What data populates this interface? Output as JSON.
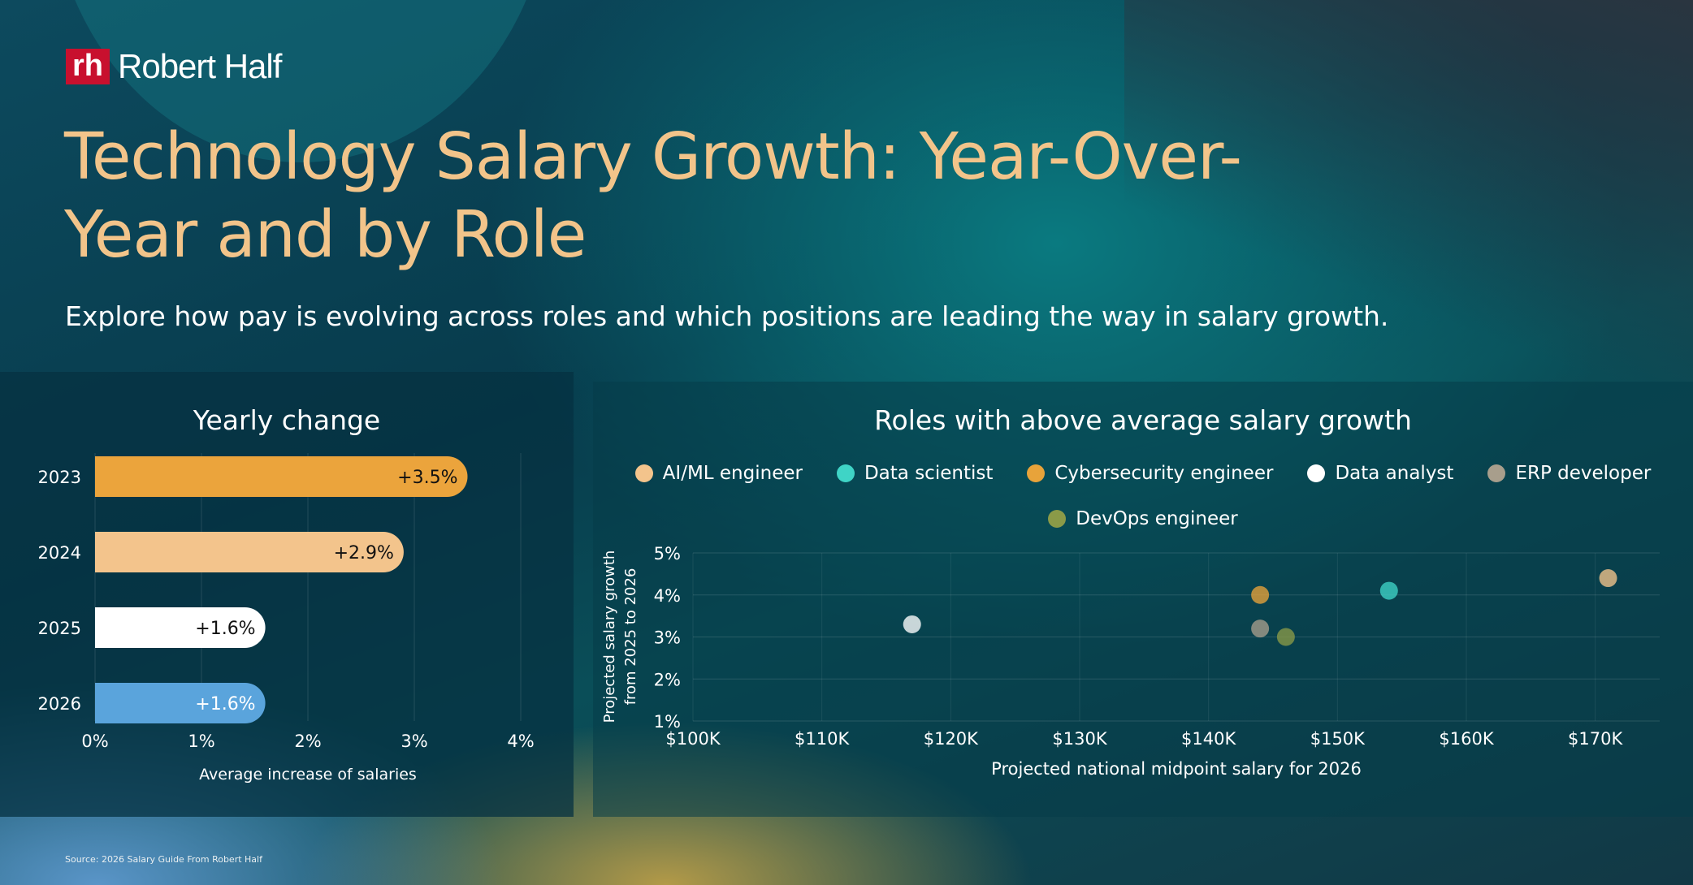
{
  "brand": {
    "logo_mark": "rh",
    "logo_text": "Robert Half"
  },
  "title": "Technology Salary Growth: Year-Over-Year and by Role",
  "subtitle": "Explore how pay is evolving across roles and which positions are leading the way in salary growth.",
  "source": "Source: 2026 Salary Guide From Robert Half",
  "chart_data": [
    {
      "type": "bar",
      "orientation": "horizontal",
      "title": "Yearly change",
      "categories": [
        "2023",
        "2024",
        "2025",
        "2026"
      ],
      "values": [
        3.5,
        2.9,
        1.6,
        1.6
      ],
      "data_labels": [
        "+3.5%",
        "+2.9%",
        "+1.6%",
        "+1.6%"
      ],
      "colors": [
        "#eba43c",
        "#f3c48c",
        "#ffffff",
        "#5aa4dc"
      ],
      "xlabel": "Average increase of salaries",
      "xlim": [
        0,
        4
      ],
      "xticks": [
        "0%",
        "1%",
        "2%",
        "3%",
        "4%"
      ],
      "grid": true
    },
    {
      "type": "scatter",
      "title": "Roles with above average salary growth",
      "xlabel": "Projected national midpoint salary for 2026",
      "ylabel": "Projected salary growth from 2025 to 2026",
      "ylabel_lines": [
        "Projected salary growth",
        "from 2025 to 2026"
      ],
      "xlim": [
        100,
        175
      ],
      "ylim": [
        1,
        5
      ],
      "xticks": [
        "$100K",
        "$110K",
        "$120K",
        "$130K",
        "$140K",
        "$150K",
        "$160K",
        "$170K"
      ],
      "yticks": [
        "1%",
        "2%",
        "3%",
        "4%",
        "5%"
      ],
      "legend": "top",
      "grid": true,
      "series": [
        {
          "name": "AI/ML engineer",
          "color": "#f3c48c",
          "x": 171,
          "y": 4.4
        },
        {
          "name": "Data scientist",
          "color": "#3fd4c6",
          "x": 154,
          "y": 4.1
        },
        {
          "name": "Cybersecurity engineer",
          "color": "#e8a33a",
          "x": 144,
          "y": 4.0
        },
        {
          "name": "Data analyst",
          "color": "#ffffff",
          "x": 117,
          "y": 3.3
        },
        {
          "name": "ERP developer",
          "color": "#a89e8c",
          "x": 144,
          "y": 3.2
        },
        {
          "name": "DevOps engineer",
          "color": "#8a9a48",
          "x": 146,
          "y": 3.0
        }
      ]
    }
  ]
}
